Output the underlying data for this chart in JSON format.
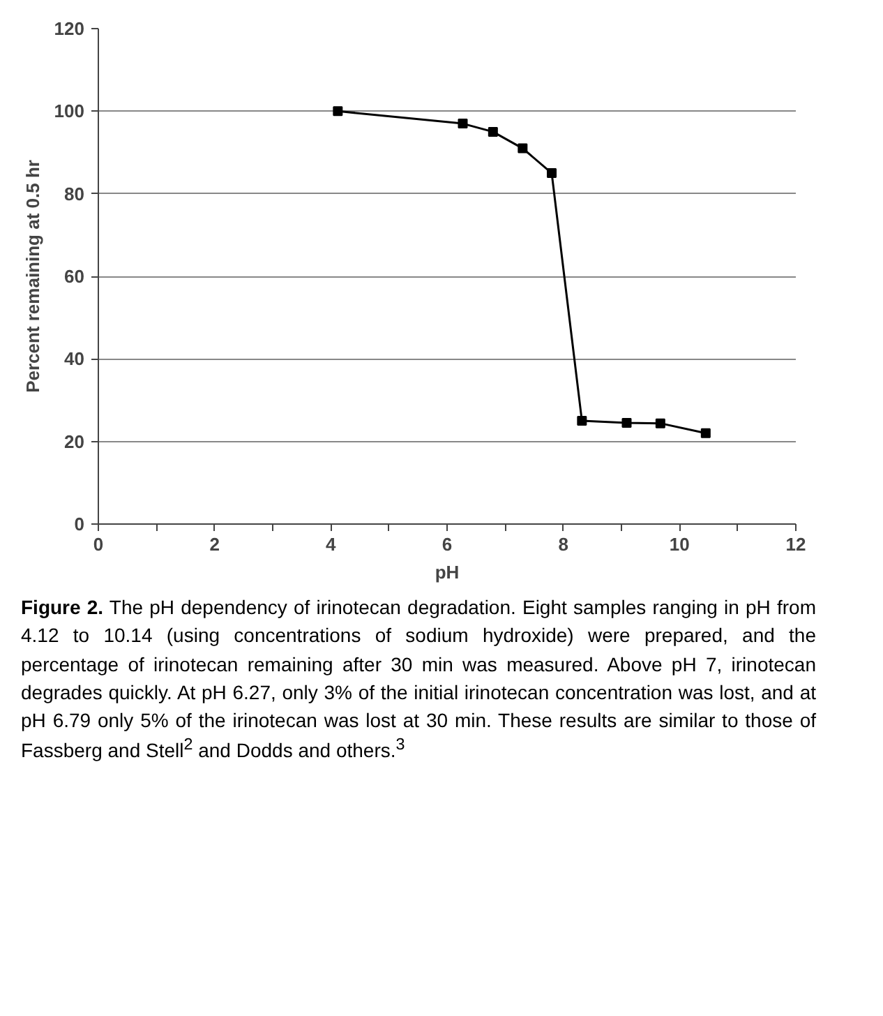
{
  "chart_data": {
    "type": "line",
    "xlabel": "pH",
    "ylabel": "Percent remaining at 0.5 hr",
    "x": [
      4.12,
      6.27,
      6.79,
      7.3,
      7.8,
      8.32,
      9.09,
      9.67,
      10.45
    ],
    "series": [
      {
        "color": "#000000",
        "values": [
          100,
          97,
          95,
          91,
          85,
          25,
          24.5,
          24.4,
          22
        ]
      }
    ],
    "xlim": [
      0,
      12
    ],
    "ylim": [
      0,
      120
    ],
    "xticks": [
      0,
      {
        "value": 1,
        "label": null
      },
      2,
      {
        "value": 3,
        "label": null
      },
      4,
      {
        "value": 5,
        "label": null
      },
      6,
      {
        "value": 7,
        "label": null
      },
      8,
      {
        "value": 9,
        "label": null
      },
      10,
      {
        "value": 11,
        "label": null
      },
      12
    ],
    "yticks": [
      0,
      20,
      40,
      60,
      80,
      100,
      120
    ],
    "grid": "y",
    "marker": "square",
    "line_style": "solid",
    "annotations": [
      "Figure 2. The pH dependency of irinotecan degradation. Eight samples ranging in pH from 4.12 to 10.14 (using concentrations of sodium hydroxide) were prepared, and the percentage of irinotecan remaining after 30 min was measured. Above pH 7, irinotecan degrades quickly. At pH 6.27, only 3% of the initial irinotecan concentration was lost, and at pH 6.79 only 5% of the irinotecan was lost at 30 min. These results are similar to those of Fassberg and Stell$^{2}$ and Dodds and others.$^{3}$"
    ]
  }
}
